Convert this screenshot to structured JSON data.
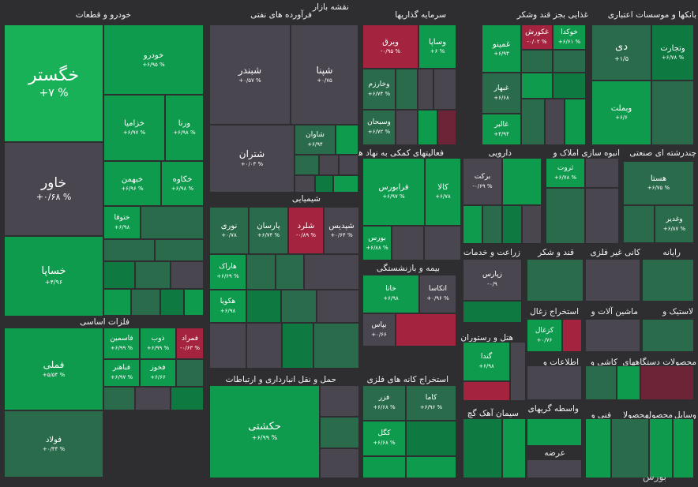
{
  "title": "نقشه بازار",
  "watermark": "بورس",
  "colors": {
    "background": "#2e2d30",
    "positive": "#0f9b4e",
    "positive_dark": "#0e7a41",
    "neutral": "#4a4650",
    "negative": "#a4233e"
  },
  "sectors": [
    {
      "label": "خودرو و قطعات"
    },
    {
      "label": "فرآورده های نفتی"
    },
    {
      "label": "سرمایه گذاریها"
    },
    {
      "label": "غذایی بجز قند وشکر"
    },
    {
      "label": "بانکها و موسسات اعتباری"
    },
    {
      "label": "فعالیتهای کمکی به نهاد های"
    },
    {
      "label": "دارویی"
    },
    {
      "label": "انبوه سازی املاک و"
    },
    {
      "label": "چندرشته ای صنعتی"
    },
    {
      "label": "شیمیایی"
    },
    {
      "label": "زراعت و خدمات"
    },
    {
      "label": "قند و شکر"
    },
    {
      "label": "کانی غیر فلزی"
    },
    {
      "label": "رایانه"
    },
    {
      "label": "بیمه و بازنشستگی"
    },
    {
      "label": "استخراج زغال"
    },
    {
      "label": "ماشین آلات و"
    },
    {
      "label": "لاستیک و"
    },
    {
      "label": "فلزات اساسی"
    },
    {
      "label": "هتل و رستوران"
    },
    {
      "label": "اطلاعات و"
    },
    {
      "label": "کاشی و"
    },
    {
      "label": "محصولات دستگاههای"
    },
    {
      "label": "حمل و نقل انبارداری و ارتباطات"
    },
    {
      "label": "استخراج کانه های فلزی"
    },
    {
      "label": "سیمان آهک گچ"
    },
    {
      "label": "واسطه گریهای"
    },
    {
      "label": "فنی و"
    },
    {
      "label": "محصولا"
    },
    {
      "label": "محصول"
    },
    {
      "label": "وسایل"
    },
    {
      "label": "عرضه"
    }
  ],
  "tiles": [
    {
      "name": "خگستر",
      "pct": "+۷ %"
    },
    {
      "name": "خودرو",
      "pct": "+۶/۹۵ %"
    },
    {
      "name": "خزامیا",
      "pct": "+۶/۹۷ %"
    },
    {
      "name": "ورنا",
      "pct": "+۶/۹۸ %"
    },
    {
      "name": "خاور",
      "pct": "+۰/۶۸ %"
    },
    {
      "name": "خبهمن",
      "pct": "+۶/۹۶ %"
    },
    {
      "name": "ختوقا",
      "pct": "+۶/۹۸"
    },
    {
      "name": "خکاوه",
      "pct": "+۶/۹۸ %"
    },
    {
      "name": "خساپا",
      "pct": "+۴/۹۶"
    },
    {
      "name": "شبندر",
      "pct": "+۰/۵۷ %"
    },
    {
      "name": "شپنا",
      "pct": "+۰/۷۵"
    },
    {
      "name": "شتران",
      "pct": "+۰/۰۳ %"
    },
    {
      "name": "شاوان",
      "pct": "+۶/۹۴"
    },
    {
      "name": "وبرق",
      "pct": "-۰/۹۵ %"
    },
    {
      "name": "وساپا",
      "pct": "+۶ %"
    },
    {
      "name": "وخارزم",
      "pct": "+۶/۷۴ %"
    },
    {
      "name": "وسبحان",
      "pct": "+۶/۷۲ %"
    },
    {
      "name": "خوکدا",
      "pct": "+۶/۶۱ %"
    },
    {
      "name": "غکورش",
      "pct": "-۰/۰۲ %"
    },
    {
      "name": "غمینو",
      "pct": "+۶/۹۳"
    },
    {
      "name": "غبهار",
      "pct": "+۶/۶۸"
    },
    {
      "name": "غالبر",
      "pct": "+۴/۹۴"
    },
    {
      "name": "دی",
      "pct": "+۱/۵"
    },
    {
      "name": "وتجارت",
      "pct": "+۶/۷۸ %"
    },
    {
      "name": "وبملت",
      "pct": "+۶/۶"
    },
    {
      "name": "فرابورس",
      "pct": "+۶/۹۷ %"
    },
    {
      "name": "کالا",
      "pct": "+۶/۷۸"
    },
    {
      "name": "بورس",
      "pct": "+۶/۸۸ %"
    },
    {
      "name": "برکت",
      "pct": "-۰/۶۹ %"
    },
    {
      "name": "ثروت",
      "pct": "+۶/۷۸ %"
    },
    {
      "name": "هستا",
      "pct": "+۶/۷۵ %"
    },
    {
      "name": "وغدیر",
      "pct": "+۶/۸۷ %"
    },
    {
      "name": "شپدیس",
      "pct": "+۰/۶۴ %"
    },
    {
      "name": "شلرد",
      "pct": "-۰/۸۹ %"
    },
    {
      "name": "پارسان",
      "pct": "+۶/۷۴ %"
    },
    {
      "name": "نوری",
      "pct": "+۰/۷۸"
    },
    {
      "name": "هاراک",
      "pct": "+۶/۶۹ %"
    },
    {
      "name": "هکویا",
      "pct": "+۶/۹۸"
    },
    {
      "name": "زپارس",
      "pct": "-۰/۹"
    },
    {
      "name": "اتکاسا",
      "pct": "+۰/۹۶ %"
    },
    {
      "name": "خاتا",
      "pct": "+۶/۹۸"
    },
    {
      "name": "بپاس",
      "pct": "+۰/۶۶"
    },
    {
      "name": "کزغال",
      "pct": "+۰/۷۶"
    },
    {
      "name": "فملی",
      "pct": "+۵/۵۴ %"
    },
    {
      "name": "فاسمین",
      "pct": "+۶/۹۹ %"
    },
    {
      "name": "ذوب",
      "pct": "+۶/۹۹ %"
    },
    {
      "name": "فمراد",
      "pct": "-۰/۶۳ %"
    },
    {
      "name": "فخوز",
      "pct": "+۶/۶۶"
    },
    {
      "name": "فباهنر",
      "pct": "+۶/۹۷ %"
    },
    {
      "name": "فولاد",
      "pct": "+۰/۴۴ %"
    },
    {
      "name": "حکشتی",
      "pct": "+۶/۹۹ %"
    },
    {
      "name": "گندا",
      "pct": "+۶/۹۸"
    },
    {
      "name": "فزر",
      "pct": "+۶/۶۸ %"
    },
    {
      "name": "کاما",
      "pct": "+۶/۹۶ %"
    },
    {
      "name": "کگل",
      "pct": "+۶/۶۸ %"
    }
  ]
}
